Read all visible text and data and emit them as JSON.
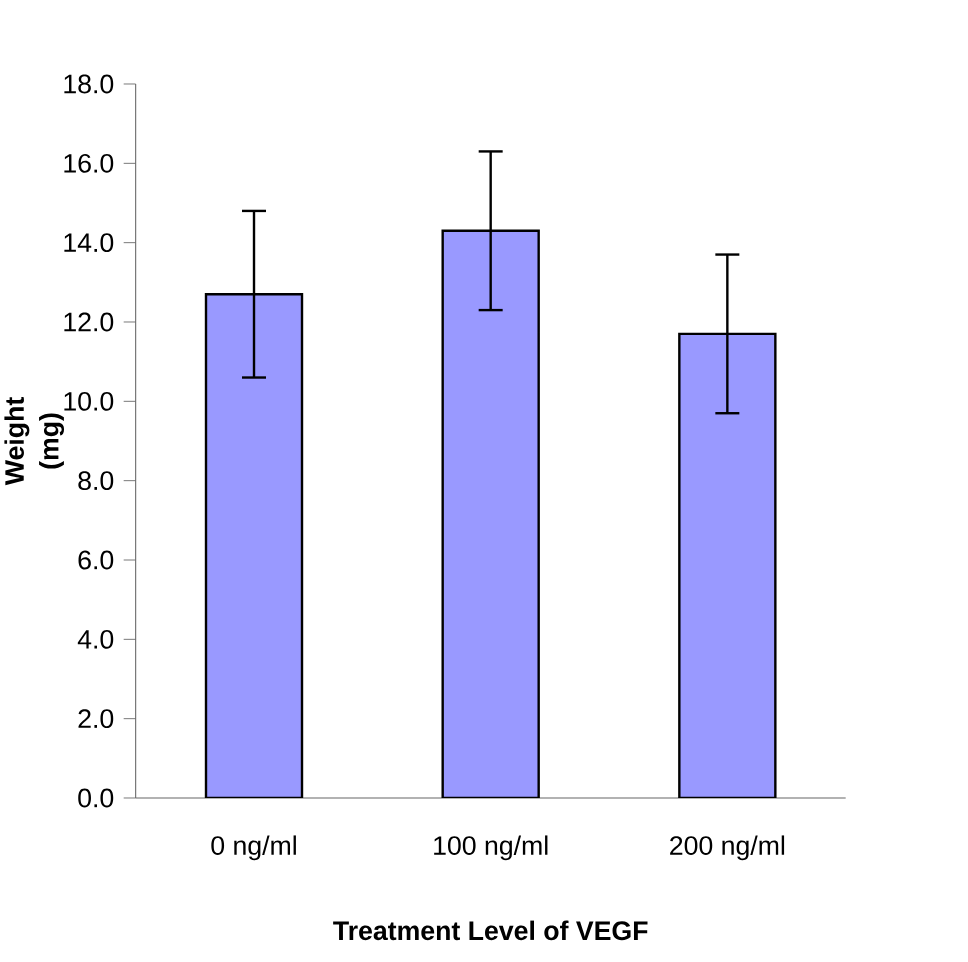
{
  "chart_data": {
    "type": "bar",
    "xlabel": "Treatment Level of VEGF",
    "ylabel": "Weight (mg)",
    "categories": [
      "0 ng/ml",
      "100 ng/ml",
      "200 ng/ml"
    ],
    "values": [
      12.7,
      14.3,
      11.7
    ],
    "errors": [
      2.1,
      2.0,
      2.0
    ],
    "color": "#9999ff",
    "ylim": [
      0,
      18
    ],
    "yticks": [
      {
        "value": 0,
        "label": "0.0"
      },
      {
        "value": 2,
        "label": "2.0"
      },
      {
        "value": 4,
        "label": "4.0"
      },
      {
        "value": 6,
        "label": "6.0"
      },
      {
        "value": 8,
        "label": "8.0"
      },
      {
        "value": 10,
        "label": "10.0"
      },
      {
        "value": 12,
        "label": "12.0"
      },
      {
        "value": 14,
        "label": "14.0"
      },
      {
        "value": 16,
        "label": "16.0"
      },
      {
        "value": 18,
        "label": "18.0"
      }
    ],
    "grid": false
  }
}
